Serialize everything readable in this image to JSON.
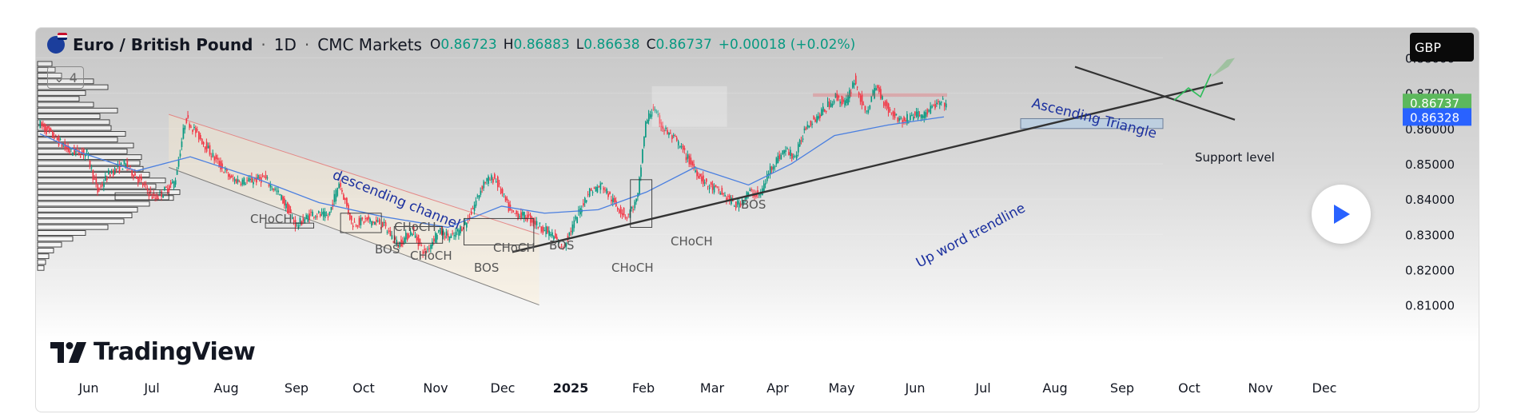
{
  "header": {
    "symbol": "Euro / British Pound",
    "interval": "1D",
    "exchange": "CMC Markets",
    "open_label": "O",
    "open": "0.86723",
    "high_label": "H",
    "high": "0.86883",
    "low_label": "L",
    "low": "0.86638",
    "close_label": "C",
    "close": "0.86737",
    "change": "+0.00018 (+0.02%)"
  },
  "indicators_count": "4",
  "currency": "GBP",
  "brand": "TradingView",
  "colors": {
    "up": "#089981",
    "down": "#f23645",
    "ma": "#4a7fe0",
    "annotation": "#1a2f9e",
    "last_price_bg": "#5cb85c",
    "ma_price_bg": "#2962ff"
  },
  "icons": {
    "play": "play-icon",
    "flag": "eur-gbp-flag-icon",
    "collapse": "chevron-down-icon"
  },
  "chart_data": {
    "type": "candlestick",
    "price_ticks": [
      "0.88000",
      "0.87000",
      "0.86000",
      "0.85000",
      "0.84000",
      "0.83000",
      "0.82000",
      "0.81000"
    ],
    "ylim": [
      0.8065,
      0.8885
    ],
    "time_labels": [
      "Jun",
      "Jul",
      "Aug",
      "Sep",
      "Oct",
      "Nov",
      "Dec",
      "2025",
      "Feb",
      "Mar",
      "Apr",
      "May",
      "Jun",
      "Jul",
      "Aug",
      "Sep",
      "Oct",
      "Nov",
      "Dec"
    ],
    "last_price": "0.86737",
    "ma_price": "0.86328",
    "price_path": [
      [
        0,
        0.8615
      ],
      [
        15,
        0.8575
      ],
      [
        28,
        0.8535
      ],
      [
        45,
        0.853
      ],
      [
        55,
        0.842
      ],
      [
        65,
        0.847
      ],
      [
        80,
        0.85
      ],
      [
        92,
        0.846
      ],
      [
        108,
        0.84
      ],
      [
        118,
        0.8425
      ],
      [
        127,
        0.845
      ],
      [
        137,
        0.863
      ],
      [
        150,
        0.8575
      ],
      [
        165,
        0.851
      ],
      [
        180,
        0.8455
      ],
      [
        195,
        0.845
      ],
      [
        210,
        0.846
      ],
      [
        225,
        0.841
      ],
      [
        240,
        0.8325
      ],
      [
        255,
        0.836
      ],
      [
        270,
        0.835
      ],
      [
        280,
        0.845
      ],
      [
        292,
        0.833
      ],
      [
        305,
        0.834
      ],
      [
        320,
        0.833
      ],
      [
        335,
        0.827
      ],
      [
        348,
        0.831
      ],
      [
        360,
        0.8245
      ],
      [
        372,
        0.831
      ],
      [
        385,
        0.829
      ],
      [
        400,
        0.834
      ],
      [
        415,
        0.845
      ],
      [
        425,
        0.846
      ],
      [
        440,
        0.836
      ],
      [
        455,
        0.835
      ],
      [
        468,
        0.832
      ],
      [
        478,
        0.83
      ],
      [
        488,
        0.826
      ],
      [
        500,
        0.834
      ],
      [
        512,
        0.842
      ],
      [
        525,
        0.844
      ],
      [
        538,
        0.838
      ],
      [
        548,
        0.835
      ],
      [
        558,
        0.84
      ],
      [
        565,
        0.861
      ],
      [
        572,
        0.866
      ],
      [
        582,
        0.86
      ],
      [
        595,
        0.856
      ],
      [
        610,
        0.849
      ],
      [
        622,
        0.844
      ],
      [
        635,
        0.842
      ],
      [
        650,
        0.838
      ],
      [
        662,
        0.842
      ],
      [
        672,
        0.841
      ],
      [
        682,
        0.849
      ],
      [
        695,
        0.854
      ],
      [
        705,
        0.852
      ],
      [
        715,
        0.861
      ],
      [
        728,
        0.864
      ],
      [
        742,
        0.869
      ],
      [
        752,
        0.867
      ],
      [
        760,
        0.874
      ],
      [
        770,
        0.864
      ],
      [
        780,
        0.872
      ],
      [
        792,
        0.865
      ],
      [
        805,
        0.862
      ],
      [
        815,
        0.864
      ],
      [
        825,
        0.864
      ],
      [
        835,
        0.8665
      ],
      [
        842,
        0.8672
      ]
    ],
    "candle_days": 845,
    "x_day_at_jun": 0,
    "moving_average": [
      [
        0,
        0.8585
      ],
      [
        40,
        0.853
      ],
      [
        90,
        0.848
      ],
      [
        140,
        0.852
      ],
      [
        200,
        0.846
      ],
      [
        260,
        0.839
      ],
      [
        320,
        0.835
      ],
      [
        380,
        0.832
      ],
      [
        430,
        0.838
      ],
      [
        470,
        0.836
      ],
      [
        520,
        0.837
      ],
      [
        565,
        0.842
      ],
      [
        610,
        0.849
      ],
      [
        660,
        0.844
      ],
      [
        700,
        0.85
      ],
      [
        740,
        0.858
      ],
      [
        790,
        0.861
      ],
      [
        842,
        0.8633
      ]
    ],
    "annotations": [
      {
        "text": "descending channel"
      },
      {
        "text": "Ascending Triangle"
      },
      {
        "text": "Up word trendline"
      },
      {
        "text": "Support level"
      },
      {
        "text": "CHoCH"
      },
      {
        "text": "CHoCH"
      },
      {
        "text": "CHoCH"
      },
      {
        "text": "CHoCH"
      },
      {
        "text": "CHoCH"
      },
      {
        "text": "CHoCH"
      },
      {
        "text": "BOS"
      },
      {
        "text": "BOS"
      },
      {
        "text": "BOS"
      },
      {
        "text": "BOS"
      }
    ]
  }
}
